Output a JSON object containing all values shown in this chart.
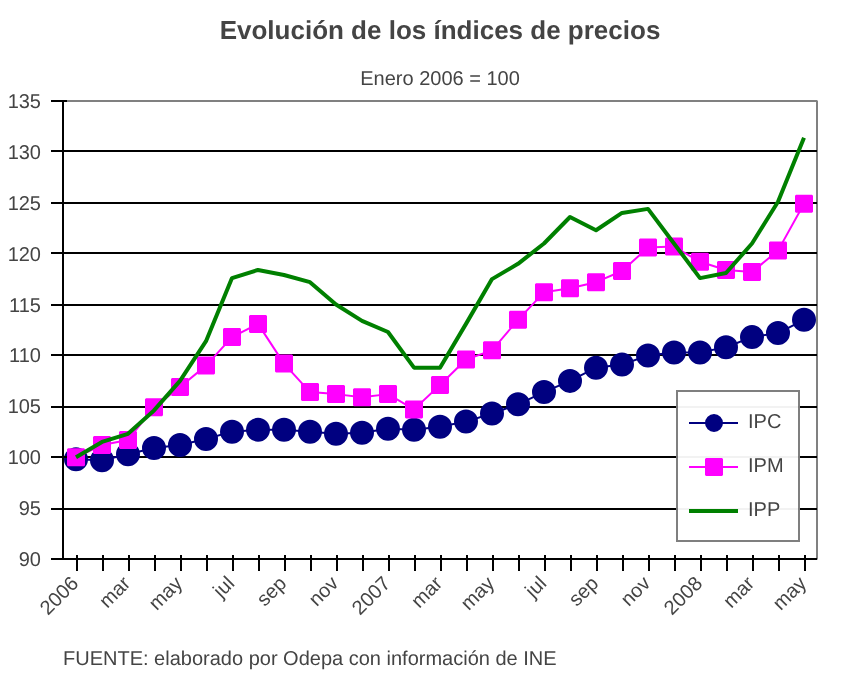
{
  "chart_data": {
    "type": "line",
    "title": "Evolución de los índices de precios",
    "subtitle": "Enero 2006 = 100",
    "categories": [
      "2006",
      null,
      "mar",
      null,
      "may",
      null,
      "jul",
      null,
      "sep",
      null,
      "nov",
      null,
      "2007",
      null,
      "mar",
      null,
      "may",
      null,
      "jul",
      null,
      "sep",
      null,
      "nov",
      null,
      "2008",
      null,
      "mar",
      null,
      "may"
    ],
    "series": [
      {
        "name": "IPC",
        "color": "#000080",
        "marker": "circle",
        "values": [
          99.8,
          99.7,
          100.3,
          100.9,
          101.2,
          101.8,
          102.5,
          102.7,
          102.7,
          102.5,
          102.3,
          102.4,
          102.8,
          102.7,
          103.0,
          103.5,
          104.3,
          105.2,
          106.4,
          107.5,
          108.8,
          109.1,
          110.0,
          110.3,
          110.3,
          110.8,
          111.8,
          112.2,
          113.5
        ]
      },
      {
        "name": "IPM",
        "color": "#ff00ff",
        "marker": "square",
        "values": [
          100.0,
          101.2,
          101.7,
          104.9,
          106.9,
          109.0,
          111.8,
          113.1,
          109.2,
          106.4,
          106.2,
          105.9,
          106.2,
          104.7,
          107.1,
          109.6,
          110.5,
          113.5,
          116.2,
          116.6,
          117.2,
          118.3,
          120.6,
          120.7,
          119.2,
          118.4,
          118.2,
          120.3,
          124.9
        ]
      },
      {
        "name": "IPP",
        "color": "#008000",
        "marker": "none",
        "values": [
          100.0,
          101.5,
          102.3,
          104.6,
          107.5,
          111.4,
          117.6,
          118.4,
          117.9,
          117.2,
          115.0,
          113.4,
          112.3,
          108.8,
          108.8,
          113.1,
          117.5,
          119.0,
          121.0,
          123.6,
          122.3,
          124.0,
          124.4,
          121.0,
          117.6,
          118.1,
          121.0,
          125.1,
          131.4
        ]
      }
    ],
    "ylim": [
      90,
      135
    ],
    "yticks": [
      90,
      95,
      100,
      105,
      110,
      115,
      120,
      125,
      130,
      135
    ],
    "grid": "y",
    "legend": "bottom right",
    "annotations": [
      "FUENTE: elaborado por Odepa con información de INE"
    ]
  }
}
